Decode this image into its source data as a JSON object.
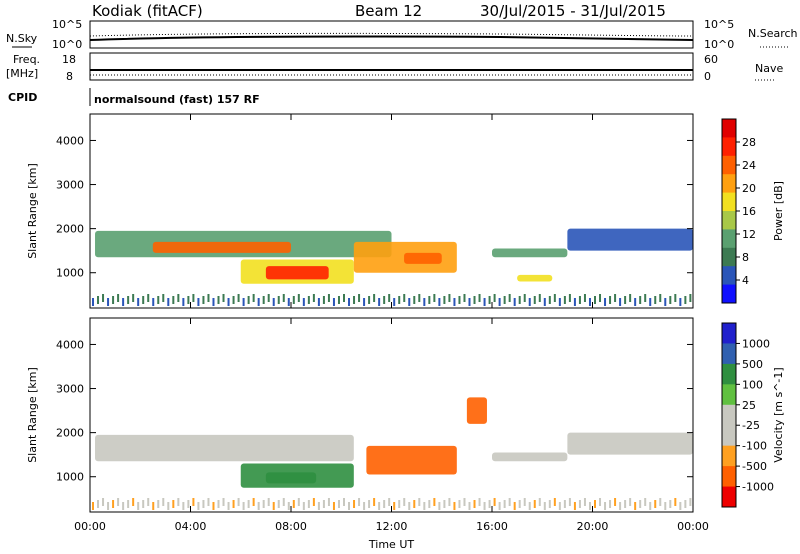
{
  "header": {
    "site": "Kodiak (fitACF)",
    "beam": "Beam 12",
    "date_range": "30/Jul/2015 - 31/Jul/2015"
  },
  "top_panels": {
    "nsky_label": "N.Sky",
    "nsearch_label": "N.Search",
    "nsky_ticks": [
      "10^5",
      "10^0"
    ],
    "nsearch_ticks": [
      "10^5",
      "10^0"
    ],
    "freq_label_1": "Freq.",
    "freq_label_2": "[MHz]",
    "freq_ticks": [
      "18",
      "8"
    ],
    "nave_label": "Nave",
    "nave_ticks": [
      "60",
      "0"
    ],
    "cpid_label": "CPID",
    "cpid_text": "normalsound (fast) 157 RF"
  },
  "colors": {
    "power_scale": [
      "#1010ff",
      "#2a55b8",
      "#3c7a52",
      "#5aa070",
      "#a8c848",
      "#f2e020",
      "#ffa010",
      "#ff6000",
      "#ff2000",
      "#e00000"
    ],
    "velocity_scale": [
      "#ee0000",
      "#ff6000",
      "#ffa020",
      "#c8c8c0",
      "#c8c8c0",
      "#60c040",
      "#2f8f40",
      "#3060b0",
      "#2020cc"
    ]
  },
  "chart_data": [
    {
      "type": "heatmap",
      "quantity": "Power",
      "ylabel": "Slant Range [km]",
      "ylim": [
        200,
        4600
      ],
      "yticks": [
        "1000",
        "2000",
        "3000",
        "4000"
      ],
      "xlim_hours": [
        0,
        24
      ],
      "colorbar_label": "Power [dB]",
      "colorbar_ticks": [
        "4",
        "8",
        "12",
        "16",
        "20",
        "24",
        "28"
      ],
      "colorbar_range": [
        0,
        32
      ],
      "regions": [
        {
          "t0": 0.2,
          "t1": 12.0,
          "r0": 1350,
          "r1": 1950,
          "value": 12
        },
        {
          "t0": 2.5,
          "t1": 8.0,
          "r0": 1450,
          "r1": 1700,
          "value": 24
        },
        {
          "t0": 6.0,
          "t1": 10.5,
          "r0": 750,
          "r1": 1300,
          "value": 16
        },
        {
          "t0": 7.0,
          "t1": 9.5,
          "r0": 850,
          "r1": 1150,
          "value": 28
        },
        {
          "t0": 10.5,
          "t1": 14.6,
          "r0": 1000,
          "r1": 1700,
          "value": 20
        },
        {
          "t0": 12.5,
          "t1": 14.0,
          "r0": 1200,
          "r1": 1450,
          "value": 24
        },
        {
          "t0": 16.0,
          "t1": 19.0,
          "r0": 1350,
          "r1": 1550,
          "value": 10
        },
        {
          "t0": 17.0,
          "t1": 18.4,
          "r0": 800,
          "r1": 950,
          "value": 16
        },
        {
          "t0": 19.0,
          "t1": 24.0,
          "r0": 1500,
          "r1": 2000,
          "value": 6
        }
      ]
    },
    {
      "type": "heatmap",
      "quantity": "Velocity",
      "ylabel": "Slant Range [km]",
      "ylim": [
        200,
        4600
      ],
      "yticks": [
        "1000",
        "2000",
        "3000",
        "4000"
      ],
      "xlim_hours": [
        0,
        24
      ],
      "xticks": [
        "00:00",
        "04:00",
        "08:00",
        "12:00",
        "16:00",
        "20:00",
        "00:00"
      ],
      "xlabel": "Time UT",
      "colorbar_label": "Velocity [m s^-1]",
      "colorbar_ticks": [
        "1000",
        "500",
        "100",
        "25",
        "-25",
        "-100",
        "-500",
        "-1000"
      ],
      "regions": [
        {
          "t0": 0.2,
          "t1": 10.5,
          "r0": 1350,
          "r1": 1950,
          "value": 0
        },
        {
          "t0": 6.0,
          "t1": 10.5,
          "r0": 750,
          "r1": 1300,
          "value": 100
        },
        {
          "t0": 7.0,
          "t1": 9.0,
          "r0": 850,
          "r1": 1100,
          "value": 300
        },
        {
          "t0": 11.0,
          "t1": 14.6,
          "r0": 1050,
          "r1": 1700,
          "value": -300
        },
        {
          "t0": 15.0,
          "t1": 15.8,
          "r0": 2200,
          "r1": 2800,
          "value": -300
        },
        {
          "t0": 16.0,
          "t1": 19.0,
          "r0": 1350,
          "r1": 1550,
          "value": 0
        },
        {
          "t0": 19.0,
          "t1": 24.0,
          "r0": 1500,
          "r1": 2000,
          "value": 0
        }
      ]
    }
  ]
}
